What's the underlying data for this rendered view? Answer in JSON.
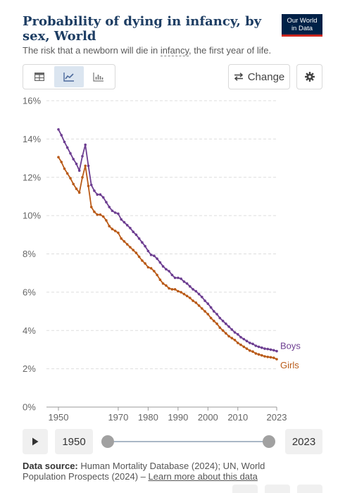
{
  "header": {
    "title": "Probability of dying in infancy, by sex, World",
    "subtitle_before": "The risk that a newborn will die in ",
    "subtitle_link": "infancy",
    "subtitle_after": ", the first year of life.",
    "logo_line1": "Our World",
    "logo_line2": "in Data"
  },
  "toolbar": {
    "tabs": [
      {
        "icon": "table-icon",
        "active": false
      },
      {
        "icon": "line-chart-icon",
        "active": true
      },
      {
        "icon": "bar-chart-icon",
        "active": false
      }
    ],
    "change_label": "Change",
    "settings_icon": "gear-icon"
  },
  "chart_data": {
    "type": "line",
    "title": "Probability of dying in infancy, by sex, World",
    "xlabel": "",
    "ylabel": "",
    "xlim": [
      1946,
      2023
    ],
    "ylim": [
      0,
      16
    ],
    "y_ticks": [
      0,
      2,
      4,
      6,
      8,
      10,
      12,
      14,
      16
    ],
    "y_tick_labels": [
      "0%",
      "2%",
      "4%",
      "6%",
      "8%",
      "10%",
      "12%",
      "14%",
      "16%"
    ],
    "x_ticks": [
      1950,
      1970,
      1980,
      1990,
      2000,
      2010,
      2023
    ],
    "x_tick_labels": [
      "1950",
      "1970",
      "1980",
      "1990",
      "2000",
      "2010",
      "2023"
    ],
    "grid": "horizontal dashed",
    "legend": "inline labels at line ends",
    "series": [
      {
        "name": "Boys",
        "color": "#6d3e91",
        "x": [
          1950,
          1951,
          1952,
          1953,
          1954,
          1955,
          1956,
          1957,
          1958,
          1959,
          1960,
          1961,
          1962,
          1963,
          1964,
          1965,
          1966,
          1967,
          1968,
          1969,
          1970,
          1971,
          1972,
          1973,
          1974,
          1975,
          1976,
          1977,
          1978,
          1979,
          1980,
          1981,
          1982,
          1983,
          1984,
          1985,
          1986,
          1987,
          1988,
          1989,
          1990,
          1991,
          1992,
          1993,
          1994,
          1995,
          1996,
          1997,
          1998,
          1999,
          2000,
          2001,
          2002,
          2003,
          2004,
          2005,
          2006,
          2007,
          2008,
          2009,
          2010,
          2011,
          2012,
          2013,
          2014,
          2015,
          2016,
          2017,
          2018,
          2019,
          2020,
          2021,
          2022,
          2023
        ],
        "values": [
          14.5,
          14.2,
          13.85,
          13.55,
          13.25,
          12.95,
          12.7,
          12.35,
          13.1,
          13.7,
          12.6,
          11.6,
          11.3,
          11.1,
          11.1,
          10.95,
          10.7,
          10.45,
          10.25,
          10.15,
          10.1,
          9.8,
          9.65,
          9.5,
          9.35,
          9.15,
          9.0,
          8.8,
          8.6,
          8.4,
          8.15,
          7.95,
          7.9,
          7.75,
          7.55,
          7.35,
          7.2,
          7.1,
          6.9,
          6.75,
          6.75,
          6.7,
          6.55,
          6.45,
          6.3,
          6.15,
          6.05,
          5.9,
          5.75,
          5.55,
          5.4,
          5.2,
          5.0,
          4.85,
          4.65,
          4.5,
          4.35,
          4.2,
          4.05,
          3.9,
          3.8,
          3.65,
          3.55,
          3.45,
          3.35,
          3.3,
          3.2,
          3.15,
          3.1,
          3.05,
          3.03,
          3.0,
          2.97,
          2.92
        ]
      },
      {
        "name": "Girls",
        "color": "#b95a17",
        "x": [
          1950,
          1951,
          1952,
          1953,
          1954,
          1955,
          1956,
          1957,
          1958,
          1959,
          1960,
          1961,
          1962,
          1963,
          1964,
          1965,
          1966,
          1967,
          1968,
          1969,
          1970,
          1971,
          1972,
          1973,
          1974,
          1975,
          1976,
          1977,
          1978,
          1979,
          1980,
          1981,
          1982,
          1983,
          1984,
          1985,
          1986,
          1987,
          1988,
          1989,
          1990,
          1991,
          1992,
          1993,
          1994,
          1995,
          1996,
          1997,
          1998,
          1999,
          2000,
          2001,
          2002,
          2003,
          2004,
          2005,
          2006,
          2007,
          2008,
          2009,
          2010,
          2011,
          2012,
          2013,
          2014,
          2015,
          2016,
          2017,
          2018,
          2019,
          2020,
          2021,
          2022,
          2023
        ],
        "values": [
          13.05,
          12.8,
          12.45,
          12.2,
          11.95,
          11.65,
          11.4,
          11.2,
          12.0,
          12.6,
          11.55,
          10.45,
          10.2,
          10.05,
          10.05,
          9.95,
          9.75,
          9.45,
          9.3,
          9.2,
          9.1,
          8.8,
          8.65,
          8.5,
          8.35,
          8.2,
          8.05,
          7.85,
          7.65,
          7.5,
          7.3,
          7.25,
          7.1,
          6.9,
          6.65,
          6.45,
          6.35,
          6.2,
          6.15,
          6.15,
          6.05,
          6.0,
          5.9,
          5.8,
          5.7,
          5.55,
          5.45,
          5.3,
          5.15,
          5.0,
          4.85,
          4.65,
          4.5,
          4.35,
          4.15,
          4.0,
          3.85,
          3.7,
          3.6,
          3.5,
          3.35,
          3.25,
          3.15,
          3.05,
          2.95,
          2.9,
          2.8,
          2.75,
          2.7,
          2.65,
          2.62,
          2.6,
          2.57,
          2.5
        ]
      }
    ]
  },
  "timeline": {
    "play_icon": "play-icon",
    "start_year": "1950",
    "end_year": "2023"
  },
  "footer": {
    "source_label": "Data source:",
    "source_text": " Human Mortality Database (2024); UN, World Population Prospects (2024) – ",
    "learn_more": "Learn more about this data"
  }
}
